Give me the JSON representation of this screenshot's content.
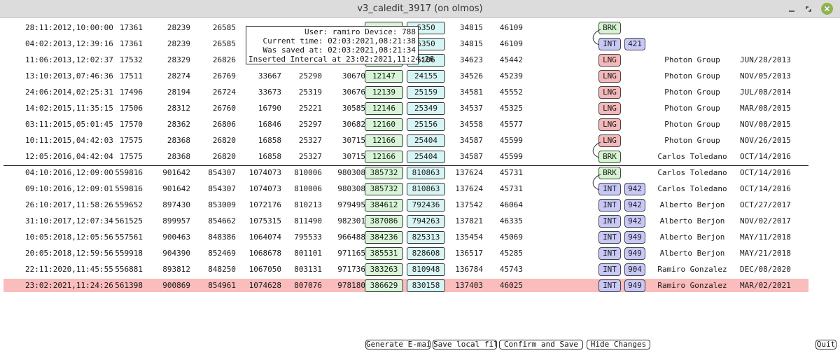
{
  "window": {
    "title": "v3_caledit_3917 (on olmos)",
    "controls": [
      "minimize-icon",
      "maximize-icon",
      "close-icon"
    ],
    "close_color": "#8fb253"
  },
  "tooltip": {
    "line1": "User: ramiro Device: 788",
    "line2": "Current time: 02:03:2021,08:21:38",
    "line3": "Was saved at: 02:03:2021,08:21:34",
    "line4": "Inserted Intercal at 23:02:2021,11:24:26"
  },
  "colors": {
    "brk": "#d4f5cf",
    "lng": "#f5b8b8",
    "int": "#c8c8f8",
    "green_cell": "#d8f5d8",
    "cyan_cell": "#d8f5f5",
    "selected_row": "#fbbcbc"
  },
  "rows": [
    {
      "date": "28:11:2012,10:00:00",
      "v1": "17361",
      "v2": "28239",
      "v3": "26585",
      "v4": "",
      "v5": "",
      "v6": "",
      "v7": "",
      "v8": "6350",
      "v9": "34815",
      "v10": "46109",
      "tag": "BRK",
      "dev": "",
      "operator": "",
      "saved": ""
    },
    {
      "date": "04:02:2013,12:39:16",
      "v1": "17361",
      "v2": "28239",
      "v3": "26585",
      "v4": "",
      "v5": "",
      "v6": "",
      "v7": "",
      "v8": "6350",
      "v9": "34815",
      "v10": "46109",
      "tag": "INT",
      "dev": "421",
      "operator": "",
      "saved": ""
    },
    {
      "date": "11:06:2013,12:02:37",
      "v1": "17532",
      "v2": "28329",
      "v3": "26826",
      "v4": "",
      "v5": "",
      "v6": "",
      "v7": "",
      "v8": "5106",
      "v9": "34623",
      "v10": "45442",
      "tag": "LNG",
      "dev": "",
      "operator": "Photon Group",
      "saved": "JUN/28/2013"
    },
    {
      "date": "13:10:2013,07:46:36",
      "v1": "17511",
      "v2": "28274",
      "v3": "26769",
      "v4": "33667",
      "v5": "25290",
      "v6": "30670",
      "v7": "12147",
      "v8": "24155",
      "v9": "34526",
      "v10": "45239",
      "tag": "LNG",
      "dev": "",
      "operator": "Photon Group",
      "saved": "NOV/05/2013"
    },
    {
      "date": "24:06:2014,02:25:31",
      "v1": "17496",
      "v2": "28194",
      "v3": "26724",
      "v4": "33673",
      "v5": "25319",
      "v6": "30676",
      "v7": "12139",
      "v8": "25159",
      "v9": "34581",
      "v10": "45552",
      "tag": "LNG",
      "dev": "",
      "operator": "Photon Group",
      "saved": "JUL/08/2014"
    },
    {
      "date": "14:02:2015,11:35:15",
      "v1": "17506",
      "v2": "28312",
      "v3": "26760",
      "v4": "16790",
      "v5": "25221",
      "v6": "30585",
      "v7": "12146",
      "v8": "25349",
      "v9": "34537",
      "v10": "45325",
      "tag": "LNG",
      "dev": "",
      "operator": "Photon Group",
      "saved": "MAR/08/2015"
    },
    {
      "date": "03:11:2015,05:01:45",
      "v1": "17570",
      "v2": "28362",
      "v3": "26806",
      "v4": "16846",
      "v5": "25297",
      "v6": "30682",
      "v7": "12160",
      "v8": "25156",
      "v9": "34558",
      "v10": "45577",
      "tag": "LNG",
      "dev": "",
      "operator": "Photon Group",
      "saved": "NOV/08/2015"
    },
    {
      "date": "10:11:2015,04:42:03",
      "v1": "17575",
      "v2": "28368",
      "v3": "26820",
      "v4": "16858",
      "v5": "25327",
      "v6": "30715",
      "v7": "12166",
      "v8": "25404",
      "v9": "34587",
      "v10": "45599",
      "tag": "LNG",
      "dev": "",
      "operator": "Photon Group",
      "saved": "NOV/26/2015"
    },
    {
      "date": "12:05:2016,04:42:04",
      "v1": "17575",
      "v2": "28368",
      "v3": "26820",
      "v4": "16858",
      "v5": "25327",
      "v6": "30715",
      "v7": "12166",
      "v8": "25404",
      "v9": "34587",
      "v10": "45599",
      "tag": "BRK",
      "dev": "",
      "operator": "Carlos Toledano",
      "saved": "OCT/14/2016"
    },
    {
      "date": "04:10:2016,12:09:00",
      "v1": "559816",
      "v2": "901642",
      "v3": "854307",
      "v4": "1074073",
      "v5": "810006",
      "v6": "980308",
      "v7": "385732",
      "v8": "810863",
      "v9": "137624",
      "v10": "45731",
      "tag": "BRK",
      "dev": "",
      "operator": "Carlos Toledano",
      "saved": "OCT/14/2016"
    },
    {
      "date": "09:10:2016,12:09:01",
      "v1": "559816",
      "v2": "901642",
      "v3": "854307",
      "v4": "1074073",
      "v5": "810006",
      "v6": "980308",
      "v7": "385732",
      "v8": "810863",
      "v9": "137624",
      "v10": "45731",
      "tag": "INT",
      "dev": "942",
      "operator": "Carlos Toledano",
      "saved": "OCT/14/2016"
    },
    {
      "date": "26:10:2017,11:58:26",
      "v1": "559652",
      "v2": "897430",
      "v3": "853009",
      "v4": "1072176",
      "v5": "810213",
      "v6": "979495",
      "v7": "384612",
      "v8": "792436",
      "v9": "137542",
      "v10": "46064",
      "tag": "INT",
      "dev": "942",
      "operator": "Alberto Berjon",
      "saved": "OCT/27/2017"
    },
    {
      "date": "31:10:2017,12:07:34",
      "v1": "561525",
      "v2": "899957",
      "v3": "854662",
      "v4": "1075315",
      "v5": "811490",
      "v6": "982301",
      "v7": "387086",
      "v8": "794263",
      "v9": "137821",
      "v10": "46335",
      "tag": "INT",
      "dev": "942",
      "operator": "Alberto Berjon",
      "saved": "NOV/02/2017"
    },
    {
      "date": "10:05:2018,12:05:56",
      "v1": "557561",
      "v2": "900463",
      "v3": "848386",
      "v4": "1064074",
      "v5": "795533",
      "v6": "966488",
      "v7": "384236",
      "v8": "825313",
      "v9": "135454",
      "v10": "45069",
      "tag": "INT",
      "dev": "949",
      "operator": "Alberto Berjon",
      "saved": "MAY/11/2018"
    },
    {
      "date": "20:05:2018,12:59:56",
      "v1": "559918",
      "v2": "904390",
      "v3": "852469",
      "v4": "1068678",
      "v5": "801101",
      "v6": "971165",
      "v7": "385531",
      "v8": "828608",
      "v9": "136517",
      "v10": "45285",
      "tag": "INT",
      "dev": "949",
      "operator": "Alberto Berjon",
      "saved": "MAY/21/2018"
    },
    {
      "date": "22:11:2020,11:45:55",
      "v1": "556881",
      "v2": "893812",
      "v3": "848250",
      "v4": "1067050",
      "v5": "803131",
      "v6": "971736",
      "v7": "383263",
      "v8": "810948",
      "v9": "136784",
      "v10": "45743",
      "tag": "INT",
      "dev": "904",
      "operator": "Ramiro Gonzalez",
      "saved": "DEC/08/2020"
    },
    {
      "date": "23:02:2021,11:24:26",
      "v1": "561398",
      "v2": "900869",
      "v3": "854961",
      "v4": "1074628",
      "v5": "807076",
      "v6": "978180",
      "v7": "386629",
      "v8": "830158",
      "v9": "137403",
      "v10": "46025",
      "tag": "INT",
      "dev": "949",
      "operator": "Ramiro Gonzalez",
      "saved": "MAR/02/2021",
      "selected": true
    }
  ],
  "buttons": {
    "generate_email": "Generate E-mail",
    "save_local": "Save local file",
    "confirm_save": "Confirm and Save",
    "hide_changes": "Hide Changes",
    "quit": "Quit"
  }
}
